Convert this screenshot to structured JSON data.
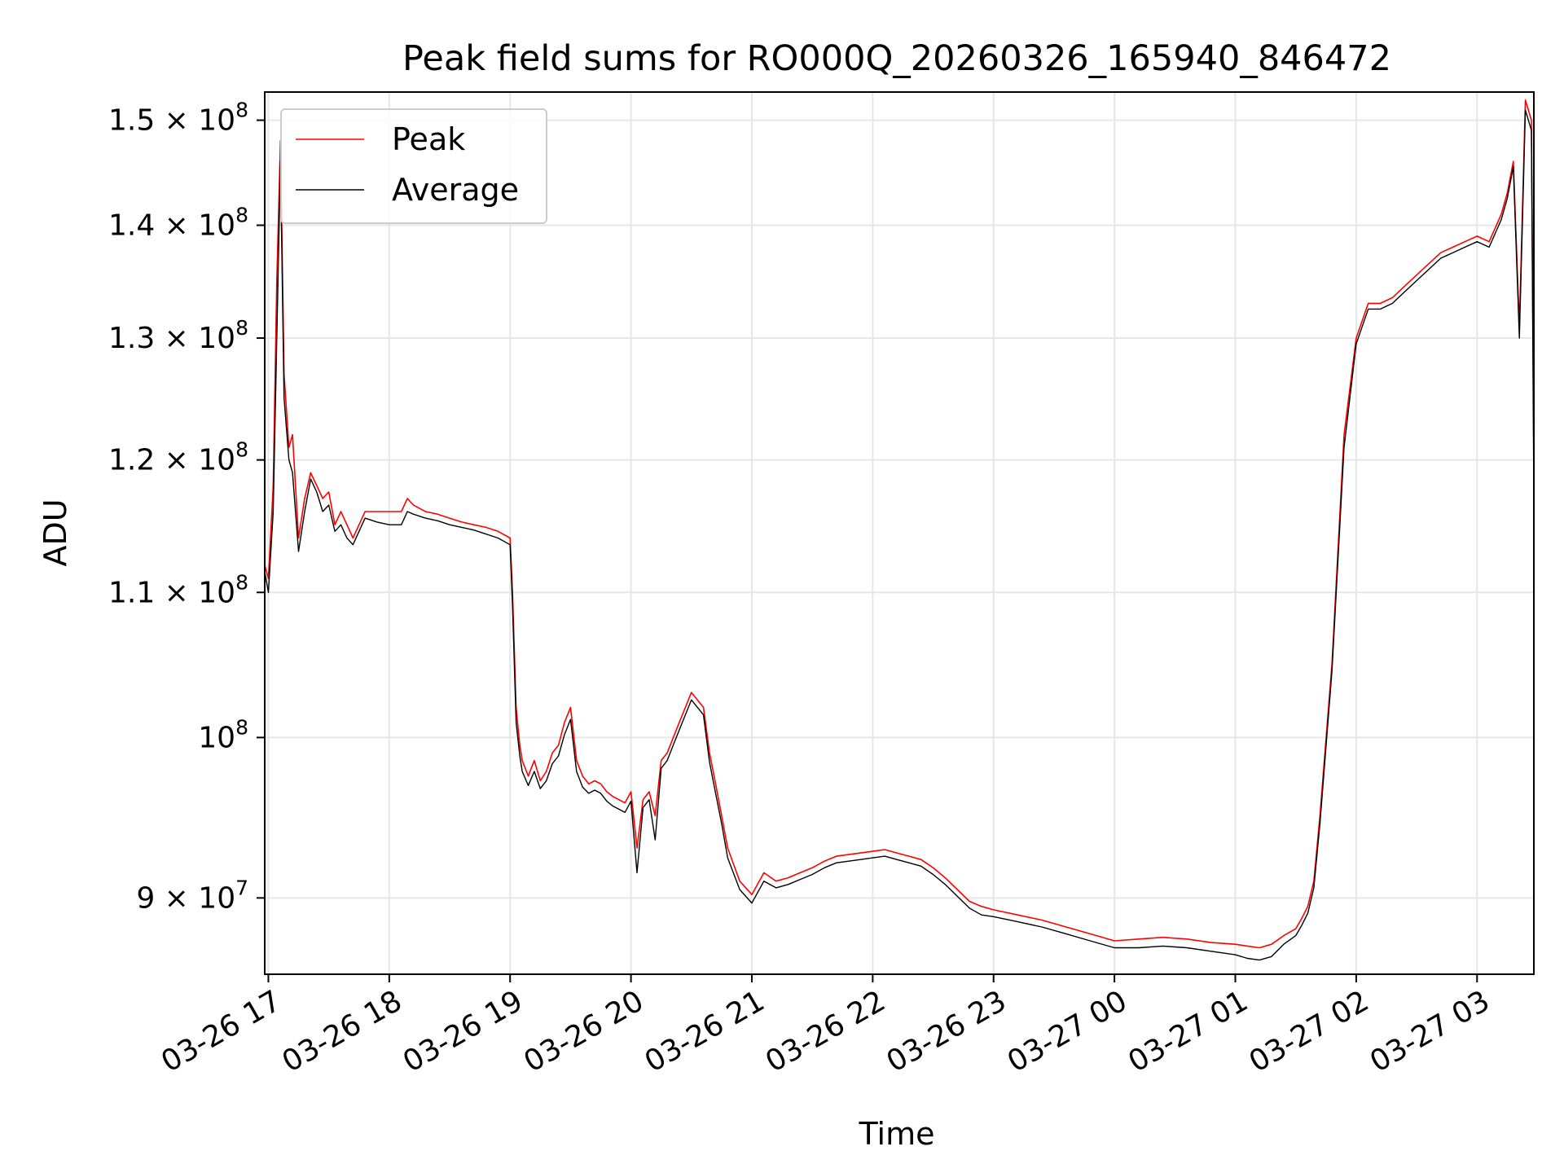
{
  "chart_data": {
    "type": "line",
    "title": "Peak field sums for RO000Q_20260326_165940_846472",
    "xlabel": "Time",
    "ylabel": "ADU",
    "yscale": "log",
    "grid": true,
    "legend_location": "upper left",
    "xlim_hours": [
      16.97,
      27.47
    ],
    "ylim": [
      85600000,
      152800000
    ],
    "xticks": [
      {
        "value": 17,
        "label": "03-26 17"
      },
      {
        "value": 18,
        "label": "03-26 18"
      },
      {
        "value": 19,
        "label": "03-26 19"
      },
      {
        "value": 20,
        "label": "03-26 20"
      },
      {
        "value": 21,
        "label": "03-26 21"
      },
      {
        "value": 22,
        "label": "03-26 22"
      },
      {
        "value": 23,
        "label": "03-26 23"
      },
      {
        "value": 24,
        "label": "03-27 00"
      },
      {
        "value": 25,
        "label": "03-27 01"
      },
      {
        "value": 26,
        "label": "03-27 02"
      },
      {
        "value": 27,
        "label": "03-27 03"
      }
    ],
    "yticks": [
      {
        "value": 90000000,
        "mantissa": "9",
        "times": "×",
        "base": "10",
        "exp": "7"
      },
      {
        "value": 100000000,
        "mantissa": "",
        "times": "",
        "base": "10",
        "exp": "8"
      },
      {
        "value": 110000000,
        "mantissa": "1.1",
        "times": "×",
        "base": "10",
        "exp": "8"
      },
      {
        "value": 120000000,
        "mantissa": "1.2",
        "times": "×",
        "base": "10",
        "exp": "8"
      },
      {
        "value": 130000000,
        "mantissa": "1.3",
        "times": "×",
        "base": "10",
        "exp": "8"
      },
      {
        "value": 140000000,
        "mantissa": "1.4",
        "times": "×",
        "base": "10",
        "exp": "8"
      },
      {
        "value": 150000000,
        "mantissa": "1.5",
        "times": "×",
        "base": "10",
        "exp": "8"
      }
    ],
    "series": [
      {
        "name": "Peak",
        "color": "#ff0000",
        "x": [
          16.97,
          17.0,
          17.04,
          17.07,
          17.1,
          17.13,
          17.17,
          17.2,
          17.25,
          17.3,
          17.35,
          17.4,
          17.45,
          17.5,
          17.55,
          17.6,
          17.65,
          17.7,
          17.8,
          17.9,
          18.0,
          18.1,
          18.15,
          18.2,
          18.3,
          18.4,
          18.5,
          18.6,
          18.7,
          18.8,
          18.9,
          19.0,
          19.02,
          19.05,
          19.08,
          19.1,
          19.15,
          19.2,
          19.25,
          19.3,
          19.35,
          19.4,
          19.45,
          19.5,
          19.55,
          19.6,
          19.65,
          19.7,
          19.75,
          19.8,
          19.85,
          19.9,
          19.95,
          20.0,
          20.05,
          20.1,
          20.15,
          20.2,
          20.25,
          20.3,
          20.35,
          20.4,
          20.5,
          20.6,
          20.65,
          20.7,
          20.75,
          20.8,
          20.9,
          21.0,
          21.1,
          21.2,
          21.3,
          21.4,
          21.5,
          21.6,
          21.7,
          21.8,
          21.9,
          22.0,
          22.1,
          22.2,
          22.3,
          22.4,
          22.5,
          22.6,
          22.7,
          22.8,
          22.9,
          23.0,
          23.2,
          23.4,
          23.6,
          23.8,
          24.0,
          24.2,
          24.4,
          24.6,
          24.8,
          25.0,
          25.1,
          25.2,
          25.3,
          25.4,
          25.5,
          25.55,
          25.6,
          25.65,
          25.7,
          25.8,
          25.9,
          26.0,
          26.1,
          26.2,
          26.3,
          26.4,
          26.5,
          26.6,
          26.7,
          26.8,
          26.9,
          27.0,
          27.1,
          27.2,
          27.25,
          27.3,
          27.35,
          27.4,
          27.45,
          27.47
        ],
        "y": [
          112000000,
          111000000,
          118000000,
          135000000,
          148000000,
          127000000,
          121000000,
          122000000,
          114000000,
          117000000,
          119000000,
          118000000,
          117000000,
          117500000,
          115000000,
          116000000,
          115000000,
          114000000,
          116000000,
          116000000,
          116000000,
          116000000,
          117000000,
          116500000,
          116000000,
          115800000,
          115500000,
          115200000,
          115000000,
          114800000,
          114500000,
          114000000,
          110000000,
          102000000,
          99500000,
          98500000,
          97500000,
          98500000,
          97200000,
          97800000,
          99000000,
          99500000,
          101000000,
          102000000,
          98500000,
          97500000,
          97000000,
          97200000,
          97000000,
          96500000,
          96200000,
          96000000,
          95800000,
          96500000,
          93000000,
          96000000,
          96500000,
          95000000,
          98500000,
          99000000,
          100000000,
          101000000,
          103000000,
          102000000,
          99000000,
          97000000,
          95000000,
          93000000,
          91000000,
          90200000,
          91500000,
          91000000,
          91200000,
          91500000,
          91800000,
          92200000,
          92500000,
          92600000,
          92700000,
          92800000,
          92900000,
          92700000,
          92500000,
          92300000,
          91800000,
          91200000,
          90500000,
          89800000,
          89500000,
          89300000,
          89000000,
          88700000,
          88300000,
          87900000,
          87500000,
          87600000,
          87700000,
          87600000,
          87400000,
          87300000,
          87200000,
          87100000,
          87300000,
          87800000,
          88200000,
          88800000,
          89500000,
          91000000,
          95000000,
          105000000,
          122000000,
          130000000,
          133000000,
          133000000,
          133500000,
          134500000,
          135500000,
          136500000,
          137500000,
          138000000,
          138500000,
          139000000,
          138500000,
          141000000,
          143000000,
          146000000,
          131000000,
          152000000,
          150000000,
          120000000
        ]
      },
      {
        "name": "Average",
        "color": "#000000",
        "x": [
          16.97,
          17.0,
          17.04,
          17.07,
          17.1,
          17.13,
          17.17,
          17.2,
          17.25,
          17.3,
          17.35,
          17.4,
          17.45,
          17.5,
          17.55,
          17.6,
          17.65,
          17.7,
          17.8,
          17.9,
          18.0,
          18.1,
          18.15,
          18.2,
          18.3,
          18.4,
          18.5,
          18.6,
          18.7,
          18.8,
          18.9,
          19.0,
          19.02,
          19.05,
          19.08,
          19.1,
          19.15,
          19.2,
          19.25,
          19.3,
          19.35,
          19.4,
          19.45,
          19.5,
          19.55,
          19.6,
          19.65,
          19.7,
          19.75,
          19.8,
          19.85,
          19.9,
          19.95,
          20.0,
          20.05,
          20.1,
          20.15,
          20.2,
          20.25,
          20.3,
          20.35,
          20.4,
          20.5,
          20.6,
          20.65,
          20.7,
          20.75,
          20.8,
          20.9,
          21.0,
          21.1,
          21.2,
          21.3,
          21.4,
          21.5,
          21.6,
          21.7,
          21.8,
          21.9,
          22.0,
          22.1,
          22.2,
          22.3,
          22.4,
          22.5,
          22.6,
          22.7,
          22.8,
          22.9,
          23.0,
          23.2,
          23.4,
          23.6,
          23.8,
          24.0,
          24.2,
          24.4,
          24.6,
          24.8,
          25.0,
          25.1,
          25.2,
          25.3,
          25.4,
          25.5,
          25.55,
          25.6,
          25.65,
          25.7,
          25.8,
          25.9,
          26.0,
          26.1,
          26.2,
          26.3,
          26.4,
          26.5,
          26.6,
          26.7,
          26.8,
          26.9,
          27.0,
          27.1,
          27.2,
          27.25,
          27.3,
          27.35,
          27.4,
          27.45,
          27.47
        ],
        "y": [
          111500000,
          110000000,
          116000000,
          130000000,
          146000000,
          125000000,
          120000000,
          119000000,
          113000000,
          116000000,
          118500000,
          117500000,
          116000000,
          116500000,
          114500000,
          115000000,
          114000000,
          113500000,
          115500000,
          115200000,
          115000000,
          115000000,
          116000000,
          115800000,
          115500000,
          115300000,
          115000000,
          114800000,
          114600000,
          114300000,
          114000000,
          113500000,
          109000000,
          101000000,
          98800000,
          97800000,
          96900000,
          97800000,
          96700000,
          97200000,
          98300000,
          98800000,
          100200000,
          101200000,
          97800000,
          96800000,
          96400000,
          96600000,
          96400000,
          95900000,
          95600000,
          95400000,
          95200000,
          95900000,
          91500000,
          95500000,
          96000000,
          93500000,
          98000000,
          98500000,
          99500000,
          100500000,
          102500000,
          101500000,
          98400000,
          96400000,
          94500000,
          92400000,
          90500000,
          89700000,
          91000000,
          90600000,
          90800000,
          91100000,
          91400000,
          91800000,
          92100000,
          92200000,
          92300000,
          92400000,
          92500000,
          92300000,
          92100000,
          91900000,
          91400000,
          90800000,
          90100000,
          89400000,
          89000000,
          88900000,
          88600000,
          88300000,
          87900000,
          87500000,
          87100000,
          87100000,
          87200000,
          87100000,
          86900000,
          86700000,
          86500000,
          86400000,
          86600000,
          87300000,
          87800000,
          88400000,
          89100000,
          90600000,
          94500000,
          104500000,
          121000000,
          129500000,
          132500000,
          132500000,
          133000000,
          134000000,
          135000000,
          136000000,
          137000000,
          137500000,
          138000000,
          138500000,
          138000000,
          140500000,
          142500000,
          145500000,
          130000000,
          151000000,
          149000000,
          117000000
        ]
      }
    ]
  }
}
